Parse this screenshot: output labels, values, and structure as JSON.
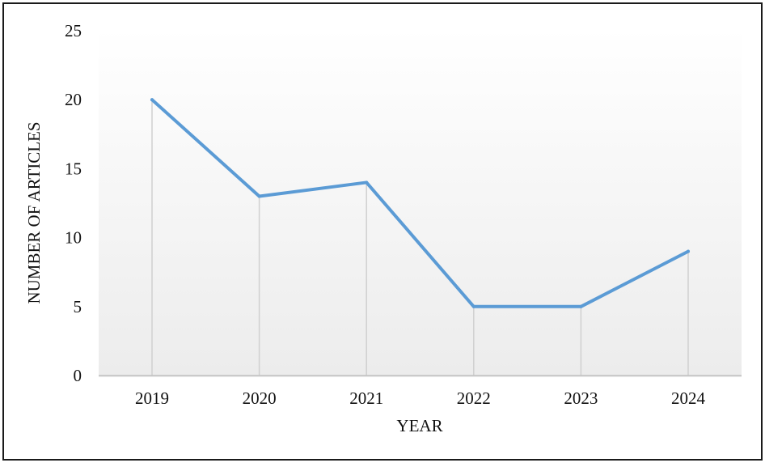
{
  "chart_data": {
    "type": "line",
    "categories": [
      "2019",
      "2020",
      "2021",
      "2022",
      "2023",
      "2024"
    ],
    "series": [
      {
        "values": [
          20,
          13,
          14,
          5,
          5,
          9
        ]
      }
    ],
    "xlabel": "YEAR",
    "ylabel": "NUMBER OF ARTICLES",
    "ylim": [
      0,
      25
    ],
    "yticks": [
      "0",
      "5",
      "10",
      "15",
      "20",
      "25"
    ],
    "grid": false,
    "drop_lines": true,
    "colors": {
      "line": "#5b9bd5",
      "drop_line": "#d0d0d0",
      "axis": "#bfbfbf",
      "plot_bg_top": "#ffffff",
      "plot_bg_bottom": "#ececec"
    }
  }
}
